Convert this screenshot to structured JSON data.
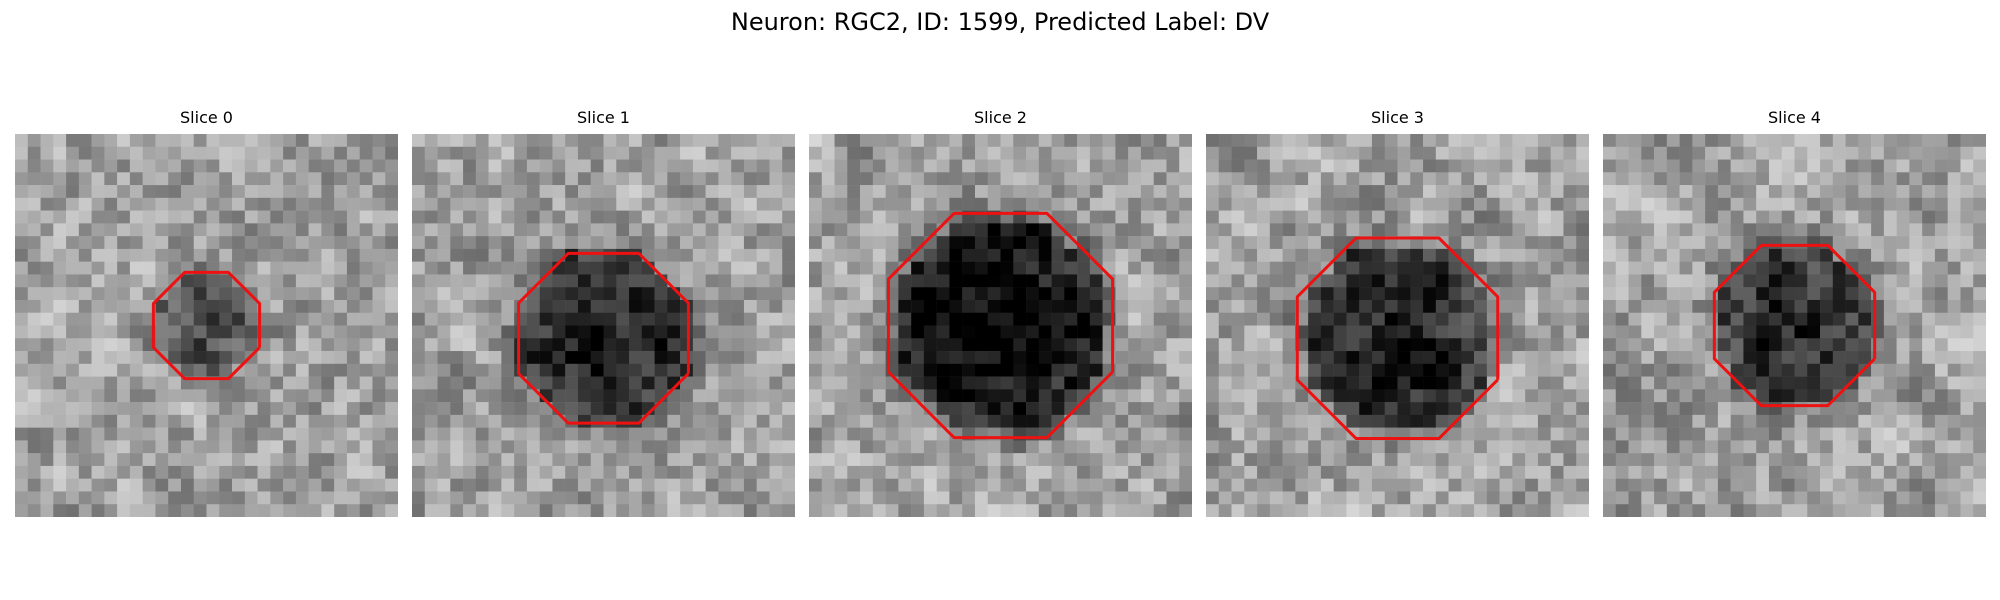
{
  "figure": {
    "title": "Neuron: RGC2, ID: 1599, Predicted Label: DV",
    "contour_color": "#ee1111"
  },
  "slices": [
    {
      "title": "Slice 0",
      "dark_blob": {
        "cx": 12,
        "cy": 12,
        "radius": 4,
        "darkness": 0.35
      },
      "contour_radius": 4.5
    },
    {
      "title": "Slice 1",
      "dark_blob": {
        "cx": 12,
        "cy": 13,
        "radius": 7,
        "darkness": 0.55
      },
      "contour_radius": 7.2
    },
    {
      "title": "Slice 2",
      "dark_blob": {
        "cx": 12,
        "cy": 12,
        "radius": 8.5,
        "darkness": 0.65
      },
      "contour_radius": 9.5
    },
    {
      "title": "Slice 3",
      "dark_blob": {
        "cx": 12,
        "cy": 13,
        "radius": 7.5,
        "darkness": 0.55
      },
      "contour_radius": 8.5
    },
    {
      "title": "Slice 4",
      "dark_blob": {
        "cx": 12,
        "cy": 12,
        "radius": 6.5,
        "darkness": 0.5
      },
      "contour_radius": 6.8
    }
  ]
}
